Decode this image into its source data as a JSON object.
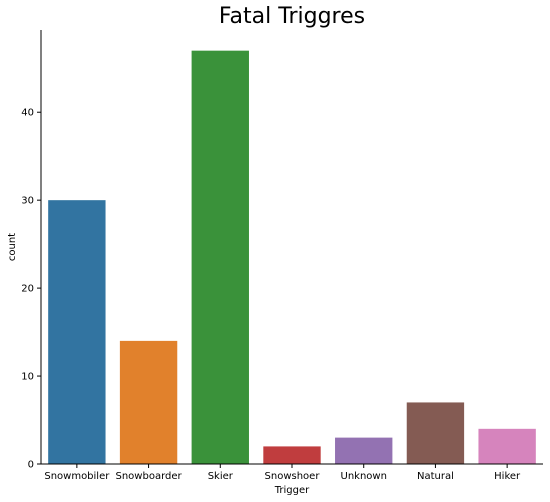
{
  "chart_data": {
    "type": "bar",
    "title": "Fatal Triggres",
    "xlabel": "Trigger",
    "ylabel": "count",
    "categories": [
      "Snowmobiler",
      "Snowboarder",
      "Skier",
      "Snowshoer",
      "Unknown",
      "Natural",
      "Hiker"
    ],
    "values": [
      30,
      14,
      47,
      2,
      3,
      7,
      4
    ],
    "colors": [
      "#3274a1",
      "#e1812c",
      "#3a923a",
      "#c03d3e",
      "#9372b2",
      "#845b53",
      "#d684bd"
    ],
    "ylim": [
      0,
      49.35
    ],
    "yticks": [
      0,
      10,
      20,
      30,
      40
    ],
    "grid": false,
    "legend": "none"
  }
}
